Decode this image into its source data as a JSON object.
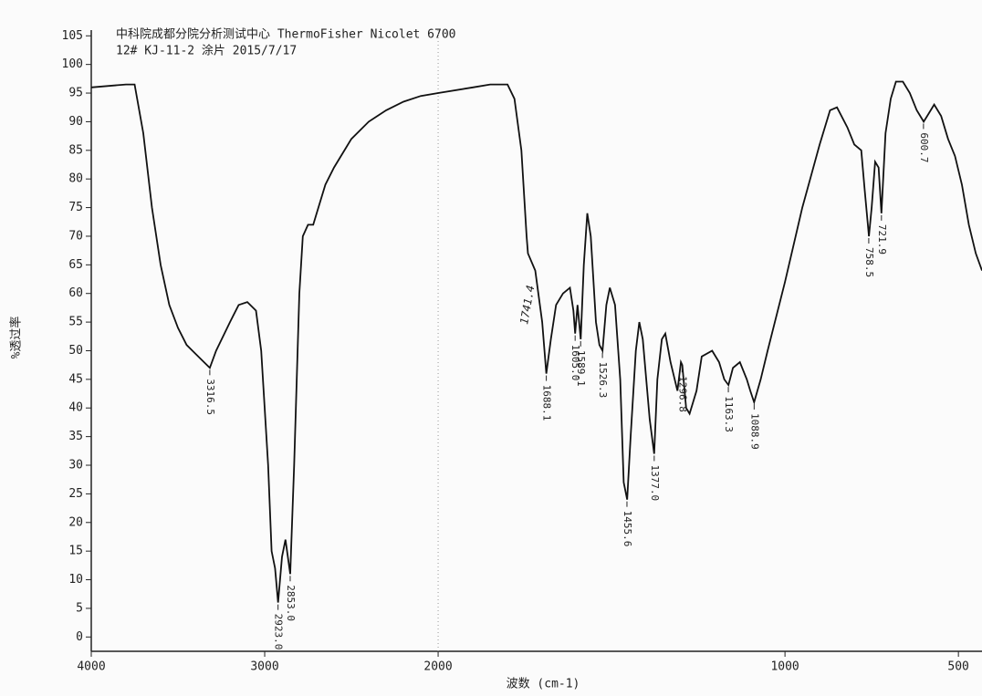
{
  "chart_data": {
    "type": "line",
    "title": "中科院成都分院分析测试中心 ThermoFisher Nicolet 6700",
    "subtitle": "12#  KJ-11-2  涂片  2015/7/17",
    "x_label": "波数 (cm-1)",
    "y_label": "%透过率",
    "xlim": [
      4000,
      432
    ],
    "ylim": [
      -2.5,
      106
    ],
    "x_break": 2000,
    "x_break_factor": 2,
    "break_line": true,
    "xticks": [
      4000,
      3000,
      2000,
      1000,
      500
    ],
    "yticks": [
      0,
      5,
      10,
      15,
      20,
      25,
      30,
      35,
      40,
      45,
      50,
      55,
      60,
      65,
      70,
      75,
      80,
      85,
      90,
      95,
      100,
      105
    ],
    "color": "#111111",
    "x": [
      4000,
      3800,
      3750,
      3700,
      3650,
      3600,
      3550,
      3500,
      3450,
      3400,
      3350,
      3316.5,
      3280,
      3200,
      3150,
      3100,
      3050,
      3020,
      2980,
      2960,
      2940,
      2923,
      2900,
      2880,
      2853,
      2830,
      2800,
      2780,
      2750,
      2720,
      2700,
      2650,
      2600,
      2500,
      2400,
      2300,
      2200,
      2100,
      2000,
      1900,
      1850,
      1800,
      1780,
      1760,
      1745,
      1741,
      1720,
      1700,
      1688,
      1675,
      1660,
      1640,
      1620,
      1610,
      1605,
      1598,
      1589,
      1580,
      1570,
      1560,
      1545,
      1535,
      1526,
      1515,
      1505,
      1490,
      1475,
      1465,
      1455,
      1445,
      1430,
      1420,
      1410,
      1400,
      1390,
      1377,
      1368,
      1355,
      1345,
      1330,
      1310,
      1300,
      1296,
      1285,
      1275,
      1265,
      1255,
      1240,
      1210,
      1190,
      1175,
      1163,
      1150,
      1130,
      1110,
      1100,
      1089,
      1070,
      1050,
      1000,
      950,
      900,
      870,
      850,
      820,
      800,
      780,
      770,
      758,
      750,
      740,
      730,
      722,
      710,
      695,
      680,
      660,
      640,
      620,
      610,
      600,
      590,
      570,
      550,
      530,
      510,
      490,
      470,
      450,
      432
    ],
    "values": [
      96,
      96.5,
      96.5,
      88,
      75,
      65,
      58,
      54,
      51,
      49.5,
      48,
      47,
      50,
      55,
      58,
      58.5,
      57,
      50,
      30,
      15,
      12,
      6,
      14,
      17,
      11,
      30,
      60,
      70,
      72,
      72,
      74,
      79,
      82,
      87,
      90,
      92,
      93.5,
      94.5,
      95,
      96,
      96.5,
      96.5,
      94,
      85,
      70,
      67,
      64,
      55,
      46,
      52,
      58,
      60,
      61,
      57,
      53,
      58,
      52,
      65,
      74,
      70,
      55,
      51,
      50,
      58,
      61,
      58,
      45,
      27,
      24,
      35,
      50,
      55,
      52,
      45,
      38,
      32,
      45,
      52,
      53,
      48,
      43,
      48,
      47.5,
      40,
      39,
      41,
      43,
      49,
      50,
      48,
      45,
      44,
      47,
      48,
      45,
      43,
      41,
      45,
      50,
      62,
      75,
      86,
      92,
      92.5,
      89,
      86,
      85,
      78,
      70,
      75,
      83,
      82,
      74,
      88,
      94,
      97,
      97,
      95,
      92,
      91,
      90,
      91,
      93,
      91,
      87,
      84,
      79,
      72,
      67,
      64
    ],
    "peaks": [
      {
        "x": 3316.5,
        "y": 47,
        "label": "3316.5"
      },
      {
        "x": 2923.0,
        "y": 6,
        "label": "2923.0"
      },
      {
        "x": 2853.0,
        "y": 11,
        "label": "2853.0"
      },
      {
        "x": 1688.1,
        "y": 46,
        "label": "1688.1"
      },
      {
        "x": 1605.0,
        "y": 53,
        "label": "1605.0"
      },
      {
        "x": 1589.1,
        "y": 52,
        "label": "1589.1"
      },
      {
        "x": 1526.3,
        "y": 50,
        "label": "1526.3"
      },
      {
        "x": 1455.6,
        "y": 24,
        "label": "1455.6"
      },
      {
        "x": 1377.0,
        "y": 32,
        "label": "1377.0"
      },
      {
        "x": 1296.8,
        "y": 47.5,
        "label": "1296.8"
      },
      {
        "x": 1163.3,
        "y": 44,
        "label": "1163.3"
      },
      {
        "x": 1088.9,
        "y": 41,
        "label": "1088.9"
      },
      {
        "x": 758.5,
        "y": 70,
        "label": "758.5"
      },
      {
        "x": 721.9,
        "y": 74,
        "label": "721.9"
      },
      {
        "x": 600.7,
        "y": 90,
        "label": "600.7"
      }
    ],
    "annotation": {
      "x": 1741.4,
      "y": 58,
      "text": "1741.4"
    }
  }
}
